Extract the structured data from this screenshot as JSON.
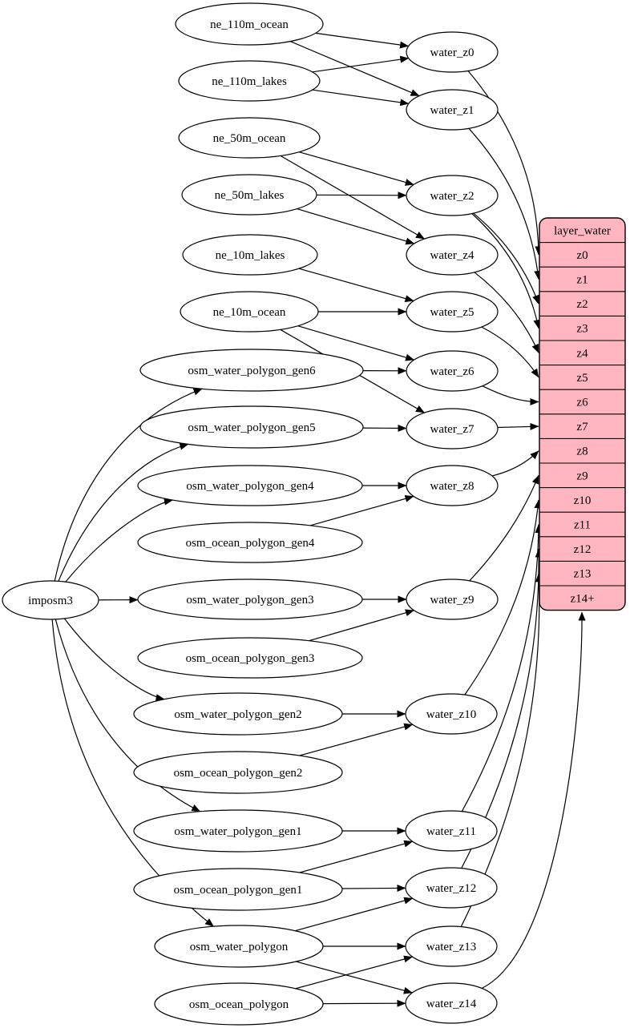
{
  "diagram": {
    "background": "#ffffff",
    "node_fill": "#ffffff",
    "node_stroke": "#000000",
    "edge_color": "#000000",
    "table_fill": "#ffb6c1",
    "table_stroke": "#000000"
  },
  "graph": {
    "nodes": [
      {
        "id": "imposm3",
        "label": "imposm3",
        "type": "importer"
      },
      {
        "id": "ne_110m_ocean",
        "label": "ne_110m_ocean",
        "type": "source"
      },
      {
        "id": "ne_110m_lakes",
        "label": "ne_110m_lakes",
        "type": "source"
      },
      {
        "id": "ne_50m_ocean",
        "label": "ne_50m_ocean",
        "type": "source"
      },
      {
        "id": "ne_50m_lakes",
        "label": "ne_50m_lakes",
        "type": "source"
      },
      {
        "id": "ne_10m_lakes",
        "label": "ne_10m_lakes",
        "type": "source"
      },
      {
        "id": "ne_10m_ocean",
        "label": "ne_10m_ocean",
        "type": "source"
      },
      {
        "id": "osm_water_polygon_gen6",
        "label": "osm_water_polygon_gen6",
        "type": "source"
      },
      {
        "id": "osm_water_polygon_gen5",
        "label": "osm_water_polygon_gen5",
        "type": "source"
      },
      {
        "id": "osm_water_polygon_gen4",
        "label": "osm_water_polygon_gen4",
        "type": "source"
      },
      {
        "id": "osm_ocean_polygon_gen4",
        "label": "osm_ocean_polygon_gen4",
        "type": "source"
      },
      {
        "id": "osm_water_polygon_gen3",
        "label": "osm_water_polygon_gen3",
        "type": "source"
      },
      {
        "id": "osm_ocean_polygon_gen3",
        "label": "osm_ocean_polygon_gen3",
        "type": "source"
      },
      {
        "id": "osm_water_polygon_gen2",
        "label": "osm_water_polygon_gen2",
        "type": "source"
      },
      {
        "id": "osm_ocean_polygon_gen2",
        "label": "osm_ocean_polygon_gen2",
        "type": "source"
      },
      {
        "id": "osm_water_polygon_gen1",
        "label": "osm_water_polygon_gen1",
        "type": "source"
      },
      {
        "id": "osm_ocean_polygon_gen1",
        "label": "osm_ocean_polygon_gen1",
        "type": "source"
      },
      {
        "id": "osm_water_polygon",
        "label": "osm_water_polygon",
        "type": "source"
      },
      {
        "id": "osm_ocean_polygon",
        "label": "osm_ocean_polygon",
        "type": "source"
      },
      {
        "id": "water_z0",
        "label": "water_z0",
        "type": "stage"
      },
      {
        "id": "water_z1",
        "label": "water_z1",
        "type": "stage"
      },
      {
        "id": "water_z2",
        "label": "water_z2",
        "type": "stage"
      },
      {
        "id": "water_z4",
        "label": "water_z4",
        "type": "stage"
      },
      {
        "id": "water_z5",
        "label": "water_z5",
        "type": "stage"
      },
      {
        "id": "water_z6",
        "label": "water_z6",
        "type": "stage"
      },
      {
        "id": "water_z7",
        "label": "water_z7",
        "type": "stage"
      },
      {
        "id": "water_z8",
        "label": "water_z8",
        "type": "stage"
      },
      {
        "id": "water_z9",
        "label": "water_z9",
        "type": "stage"
      },
      {
        "id": "water_z10",
        "label": "water_z10",
        "type": "stage"
      },
      {
        "id": "water_z11",
        "label": "water_z11",
        "type": "stage"
      },
      {
        "id": "water_z12",
        "label": "water_z12",
        "type": "stage"
      },
      {
        "id": "water_z13",
        "label": "water_z13",
        "type": "stage"
      },
      {
        "id": "water_z14",
        "label": "water_z14",
        "type": "stage"
      }
    ],
    "table": {
      "title": "layer_water",
      "rows": [
        "z0",
        "z1",
        "z2",
        "z3",
        "z4",
        "z5",
        "z6",
        "z7",
        "z8",
        "z9",
        "z10",
        "z11",
        "z12",
        "z13",
        "z14+"
      ]
    },
    "edges": [
      {
        "from": "imposm3",
        "to": "osm_water_polygon_gen6"
      },
      {
        "from": "imposm3",
        "to": "osm_water_polygon_gen5"
      },
      {
        "from": "imposm3",
        "to": "osm_water_polygon_gen4"
      },
      {
        "from": "imposm3",
        "to": "osm_water_polygon_gen3"
      },
      {
        "from": "imposm3",
        "to": "osm_water_polygon_gen2"
      },
      {
        "from": "imposm3",
        "to": "osm_water_polygon_gen1"
      },
      {
        "from": "imposm3",
        "to": "osm_water_polygon"
      },
      {
        "from": "ne_110m_ocean",
        "to": "water_z0"
      },
      {
        "from": "ne_110m_ocean",
        "to": "water_z1"
      },
      {
        "from": "ne_110m_lakes",
        "to": "water_z0"
      },
      {
        "from": "ne_110m_lakes",
        "to": "water_z1"
      },
      {
        "from": "ne_50m_ocean",
        "to": "water_z2"
      },
      {
        "from": "ne_50m_ocean",
        "to": "water_z4"
      },
      {
        "from": "ne_50m_lakes",
        "to": "water_z2"
      },
      {
        "from": "ne_50m_lakes",
        "to": "water_z4"
      },
      {
        "from": "ne_10m_lakes",
        "to": "water_z5"
      },
      {
        "from": "ne_10m_ocean",
        "to": "water_z5"
      },
      {
        "from": "ne_10m_ocean",
        "to": "water_z6"
      },
      {
        "from": "ne_10m_ocean",
        "to": "water_z7"
      },
      {
        "from": "osm_water_polygon_gen6",
        "to": "water_z6"
      },
      {
        "from": "osm_water_polygon_gen5",
        "to": "water_z7"
      },
      {
        "from": "osm_water_polygon_gen4",
        "to": "water_z8"
      },
      {
        "from": "osm_ocean_polygon_gen4",
        "to": "water_z8"
      },
      {
        "from": "osm_water_polygon_gen3",
        "to": "water_z9"
      },
      {
        "from": "osm_ocean_polygon_gen3",
        "to": "water_z9"
      },
      {
        "from": "osm_water_polygon_gen2",
        "to": "water_z10"
      },
      {
        "from": "osm_ocean_polygon_gen2",
        "to": "water_z10"
      },
      {
        "from": "osm_water_polygon_gen1",
        "to": "water_z11"
      },
      {
        "from": "osm_ocean_polygon_gen1",
        "to": "water_z11"
      },
      {
        "from": "osm_ocean_polygon_gen1",
        "to": "water_z12"
      },
      {
        "from": "osm_water_polygon",
        "to": "water_z12"
      },
      {
        "from": "osm_water_polygon",
        "to": "water_z13"
      },
      {
        "from": "osm_water_polygon",
        "to": "water_z14"
      },
      {
        "from": "osm_ocean_polygon",
        "to": "water_z13"
      },
      {
        "from": "osm_ocean_polygon",
        "to": "water_z14"
      },
      {
        "from": "water_z0",
        "to": "row:z0"
      },
      {
        "from": "water_z1",
        "to": "row:z1"
      },
      {
        "from": "water_z2",
        "to": "row:z2"
      },
      {
        "from": "water_z2",
        "to": "row:z3"
      },
      {
        "from": "water_z4",
        "to": "row:z4"
      },
      {
        "from": "water_z5",
        "to": "row:z5"
      },
      {
        "from": "water_z6",
        "to": "row:z6"
      },
      {
        "from": "water_z7",
        "to": "row:z7"
      },
      {
        "from": "water_z8",
        "to": "row:z8"
      },
      {
        "from": "water_z9",
        "to": "row:z9"
      },
      {
        "from": "water_z10",
        "to": "row:z10"
      },
      {
        "from": "water_z11",
        "to": "row:z11"
      },
      {
        "from": "water_z12",
        "to": "row:z12"
      },
      {
        "from": "water_z13",
        "to": "row:z13"
      },
      {
        "from": "water_z14",
        "to": "row:z14+"
      }
    ]
  }
}
